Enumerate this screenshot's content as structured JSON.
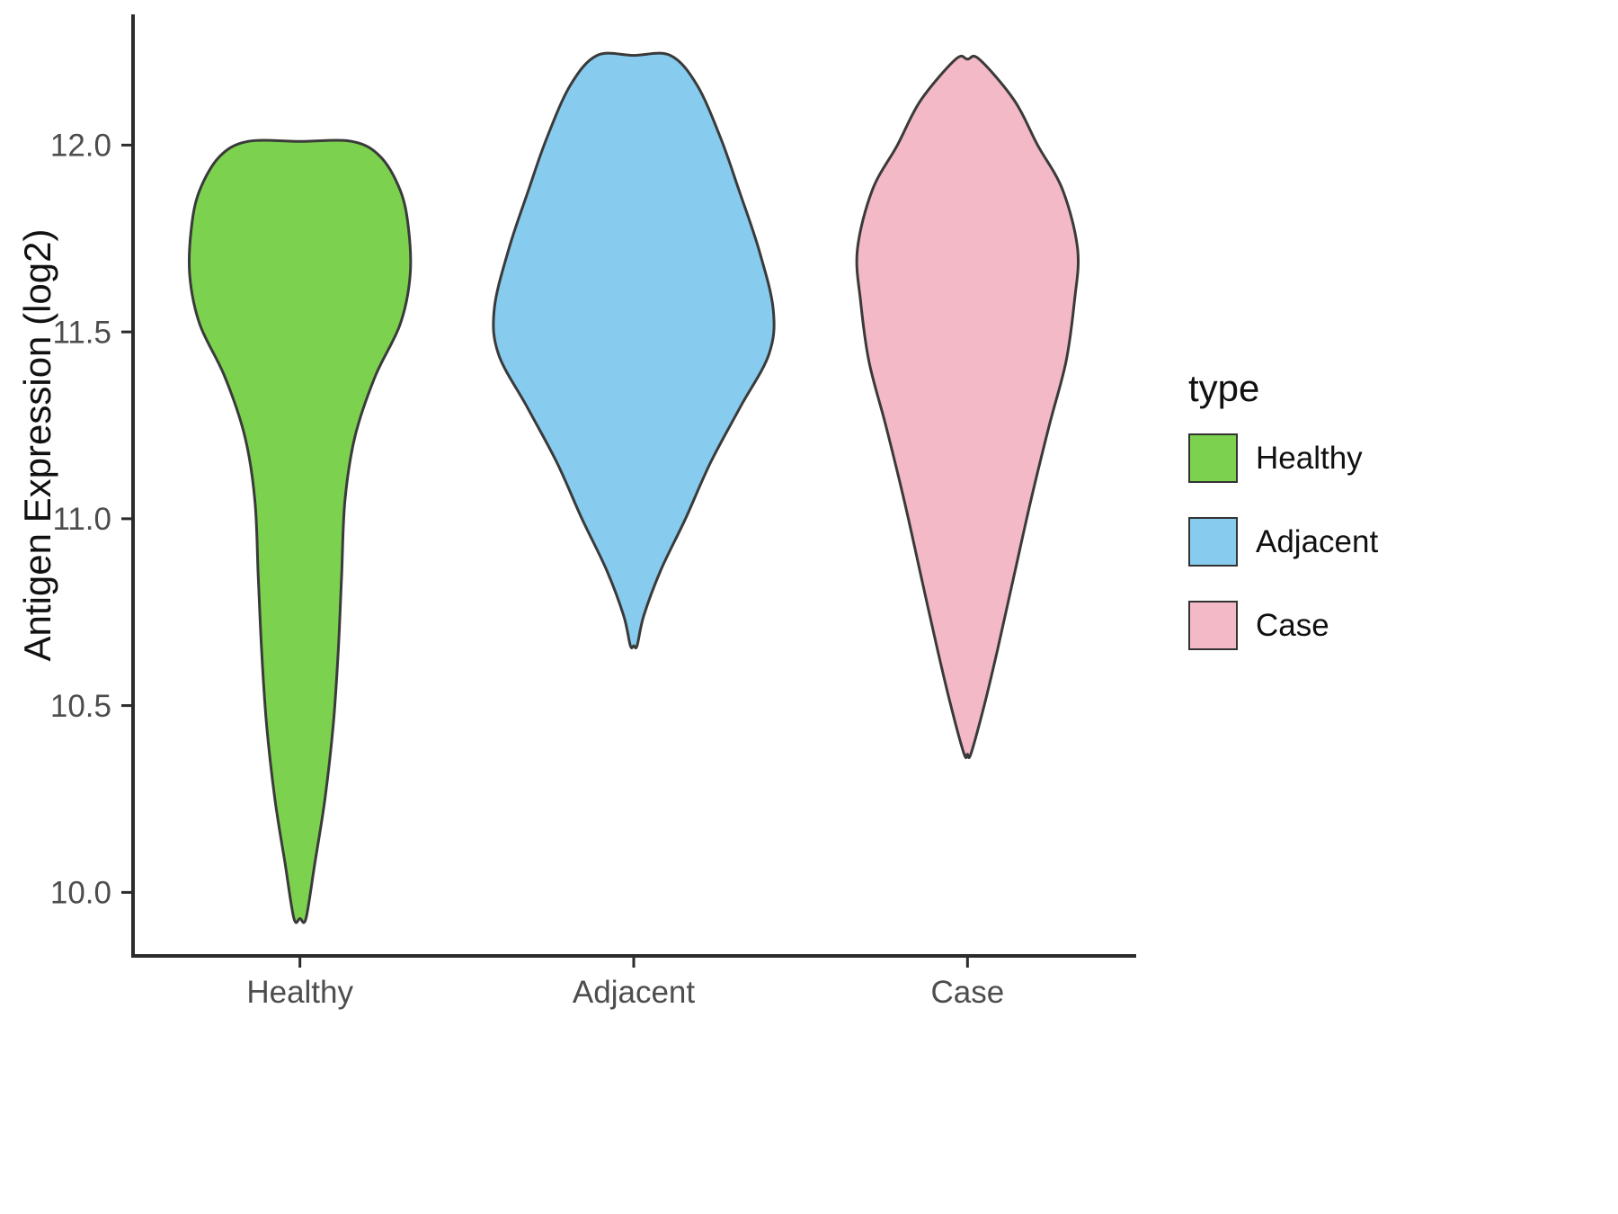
{
  "chart_data": {
    "type": "violin",
    "title": "",
    "xlabel": "",
    "ylabel": "Antigen Expression (log2)",
    "categories": [
      "Healthy",
      "Adjacent",
      "Case"
    ],
    "y_tick_labels": [
      "10.0",
      "10.5",
      "11.0",
      "11.5",
      "12.0"
    ],
    "y_tick_values": [
      10.0,
      10.5,
      11.0,
      11.5,
      12.0
    ],
    "ylim": [
      9.83,
      12.345
    ],
    "grid": "off",
    "outline_color": "#3A3A3A",
    "axis_color": "#2B2B2B",
    "tick_label_color": "#4D4D4D",
    "legend": {
      "title": "type",
      "position": "right",
      "items": [
        {
          "label": "Healthy",
          "color": "#7CD24F"
        },
        {
          "label": "Adjacent",
          "color": "#87CBEE"
        },
        {
          "label": "Case",
          "color": "#F4B9C6"
        }
      ]
    },
    "series": [
      {
        "name": "Healthy",
        "color": "#7CD24F",
        "min": 9.93,
        "max": 12.01,
        "profile": [
          [
            12.01,
            0.155
          ],
          [
            11.97,
            0.24
          ],
          [
            11.88,
            0.3
          ],
          [
            11.78,
            0.325
          ],
          [
            11.65,
            0.33
          ],
          [
            11.52,
            0.3
          ],
          [
            11.38,
            0.225
          ],
          [
            11.22,
            0.165
          ],
          [
            11.05,
            0.135
          ],
          [
            10.85,
            0.125
          ],
          [
            10.65,
            0.115
          ],
          [
            10.45,
            0.1
          ],
          [
            10.25,
            0.075
          ],
          [
            10.08,
            0.045
          ],
          [
            9.93,
            0.018
          ]
        ]
      },
      {
        "name": "Adjacent",
        "color": "#87CBEE",
        "min": 10.66,
        "max": 12.24,
        "profile": [
          [
            12.24,
            0.11
          ],
          [
            12.16,
            0.19
          ],
          [
            12.02,
            0.26
          ],
          [
            11.88,
            0.315
          ],
          [
            11.72,
            0.375
          ],
          [
            11.56,
            0.418
          ],
          [
            11.44,
            0.405
          ],
          [
            11.3,
            0.32
          ],
          [
            11.15,
            0.23
          ],
          [
            11.0,
            0.155
          ],
          [
            10.86,
            0.08
          ],
          [
            10.74,
            0.03
          ],
          [
            10.66,
            0.01
          ]
        ]
      },
      {
        "name": "Case",
        "color": "#F4B9C6",
        "min": 10.37,
        "max": 12.23,
        "profile": [
          [
            12.23,
            0.035
          ],
          [
            12.12,
            0.14
          ],
          [
            12.0,
            0.21
          ],
          [
            11.88,
            0.285
          ],
          [
            11.72,
            0.33
          ],
          [
            11.58,
            0.32
          ],
          [
            11.42,
            0.295
          ],
          [
            11.25,
            0.245
          ],
          [
            11.05,
            0.19
          ],
          [
            10.85,
            0.14
          ],
          [
            10.65,
            0.09
          ],
          [
            10.5,
            0.05
          ],
          [
            10.37,
            0.01
          ]
        ]
      }
    ]
  }
}
